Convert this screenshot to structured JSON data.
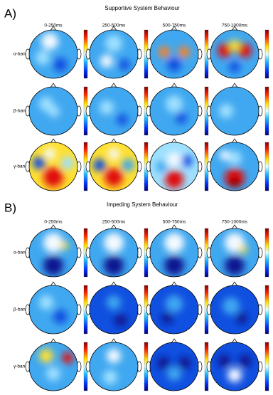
{
  "panels": [
    {
      "label": "A)",
      "title": "Supportive System Behaviour",
      "columns": [
        "0-250ms",
        "250-500ms",
        "500-750ms",
        "750-1000ms"
      ],
      "rows": [
        "α-band",
        "β-band",
        "γ-band"
      ]
    },
    {
      "label": "B)",
      "title": "Impeding System Behaviour",
      "columns": [
        "0-250ms",
        "250-500ms",
        "500-750ms",
        "750-1000ms"
      ],
      "rows": [
        "α-band",
        "β-band",
        "γ-band"
      ]
    }
  ]
}
